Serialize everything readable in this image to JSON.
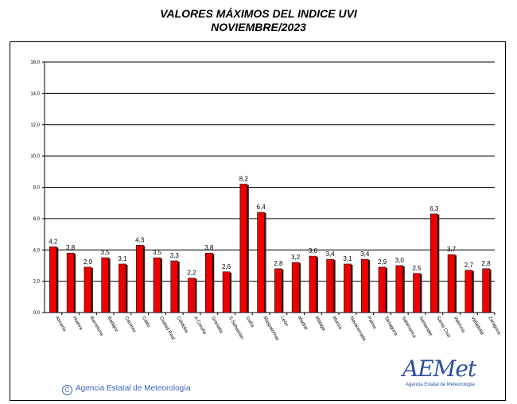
{
  "header": {
    "title": "VALORES MÁXIMOS DEL INDICE UVI",
    "subtitle": "NOVIEMBRE/2023"
  },
  "footer": {
    "copyright": "Agencia Estatal de Meteorología",
    "logo_text": "AEMet",
    "logo_subtext": "Agencia Estatal de Meteorología",
    "logo_color": "#2a4fa0",
    "copyright_color": "#3a63b8"
  },
  "chart_data": {
    "type": "bar",
    "title": "VALORES MÁXIMOS DEL INDICE UVI",
    "subtitle": "NOVIEMBRE/2023",
    "xlabel": "",
    "ylabel": "",
    "ylim": [
      0,
      16
    ],
    "ytick_step": 2,
    "ytick_labels": [
      "0,0",
      "2,0",
      "4,0",
      "6,0",
      "8,0",
      "10,0",
      "12,0",
      "14,0",
      "16,0"
    ],
    "grid": true,
    "bar_color": "#ee0000",
    "categories": [
      "Almería",
      "Huelva",
      "Barcelona",
      "Badajoz",
      "Cáceres",
      "Cádiz",
      "Ciudad Real",
      "Córdoba",
      "A Coruña",
      "Granada",
      "S.Sebastián",
      "Izaña",
      "Maspalomas",
      "León",
      "Madrid",
      "Málaga",
      "Murcia",
      "Navacerrada",
      "Palma",
      "Tarragona",
      "Salamanca",
      "Santander",
      "Santa Cruz",
      "Valencia",
      "Valladolid",
      "Zaragoza"
    ],
    "values": [
      4.2,
      3.8,
      2.9,
      3.5,
      3.1,
      4.3,
      3.5,
      3.3,
      2.2,
      3.8,
      2.6,
      8.2,
      6.4,
      2.8,
      3.2,
      3.6,
      3.4,
      3.1,
      3.4,
      2.9,
      3.0,
      2.5,
      6.3,
      3.7,
      2.7,
      2.8
    ],
    "value_labels": [
      "4,2",
      "3,8",
      "2,9",
      "3,5",
      "3,1",
      "4,3",
      "3,5",
      "3,3",
      "2,2",
      "3,8",
      "2,6",
      "8,2",
      "6,4",
      "2,8",
      "3,2",
      "3,6",
      "3,4",
      "3,1",
      "3,4",
      "2,9",
      "3,0",
      "2,5",
      "6,3",
      "3,7",
      "2,7",
      "2,8"
    ]
  }
}
